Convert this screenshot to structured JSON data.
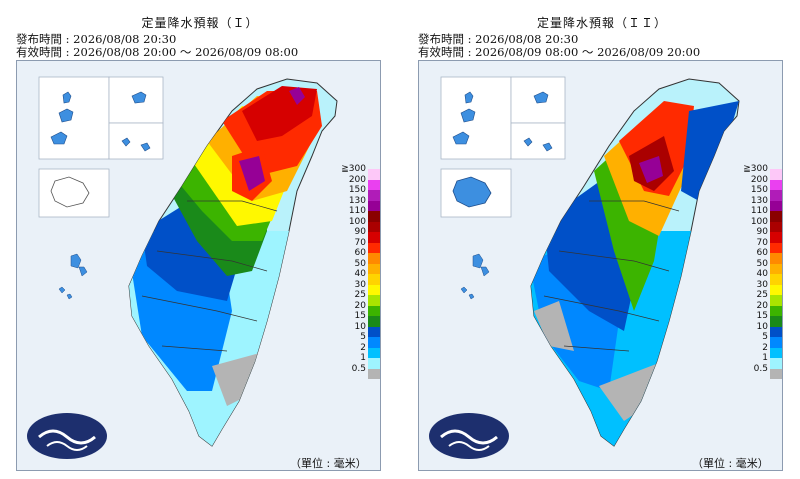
{
  "panels": [
    {
      "title": "定量降水預報（Ｉ）",
      "issued": "發布時間 : 2026/08/08 20:30",
      "valid": "有效時間 : 2026/08/08 20:00 ～ 2026/08/09 08:00",
      "unit": "（單位 : 毫米）"
    },
    {
      "title": "定量降水預報（ＩＩ）",
      "issued": "發布時間 : 2026/08/08 20:30",
      "valid": "有效時間 : 2026/08/09 08:00 ～ 2026/08/09 20:00",
      "unit": "（單位 : 毫米）"
    }
  ],
  "legend": [
    {
      "label": "≧300",
      "color": "#fdc8f8"
    },
    {
      "label": "200",
      "color": "#ea40f0"
    },
    {
      "label": "150",
      "color": "#b01cb8"
    },
    {
      "label": "130",
      "color": "#960096"
    },
    {
      "label": "110",
      "color": "#8a0000"
    },
    {
      "label": "100",
      "color": "#aa0000"
    },
    {
      "label": "90",
      "color": "#d60000"
    },
    {
      "label": "70",
      "color": "#ff2a00"
    },
    {
      "label": "60",
      "color": "#ff8a00"
    },
    {
      "label": "50",
      "color": "#ffb000"
    },
    {
      "label": "40",
      "color": "#ffd400"
    },
    {
      "label": "30",
      "color": "#fff800"
    },
    {
      "label": "25",
      "color": "#a8e400"
    },
    {
      "label": "20",
      "color": "#3cb400"
    },
    {
      "label": "15",
      "color": "#1a8a1a"
    },
    {
      "label": "10",
      "color": "#0050c8"
    },
    {
      "label": "5",
      "color": "#0088ff"
    },
    {
      "label": "2",
      "color": "#00c0ff"
    },
    {
      "label": "1",
      "color": "#9ef4ff"
    },
    {
      "label": "0.5",
      "color": "#b4b4b4"
    }
  ]
}
